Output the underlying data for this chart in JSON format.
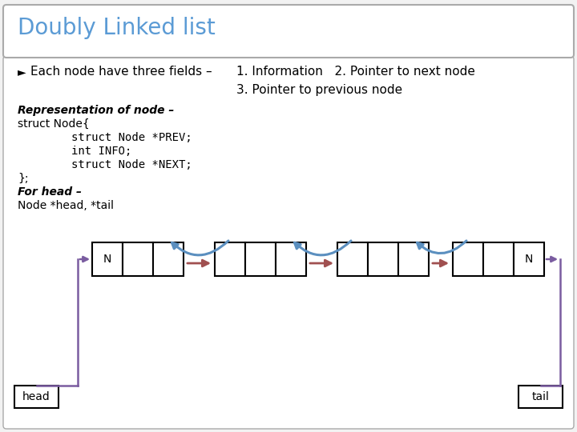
{
  "title": "Doubly Linked list",
  "title_color": "#5b9bd5",
  "bg_outer": "#c8c8c8",
  "bg_inner": "#f0f0f0",
  "bullet_text": "Each node have three fields –",
  "point1": "1. Information   2. Pointer to next node",
  "point2": "3. Pointer to previous node",
  "code_bold_italic": "Representation of node –",
  "code_line1": "struct Node{",
  "code_line2": "        struct Node *PREV;",
  "code_line3": "        int INFO;",
  "code_line4": "        struct Node *NEXT;",
  "code_line5": "};",
  "code_bold_italic2": "For head –",
  "code_line6": "Node *head, *tail",
  "fwd_color": "#a05050",
  "bck_color": "#5b8fbf",
  "ptr_color": "#7a5ca0",
  "head_label": "head",
  "tail_label": "tail",
  "null_label": "N"
}
